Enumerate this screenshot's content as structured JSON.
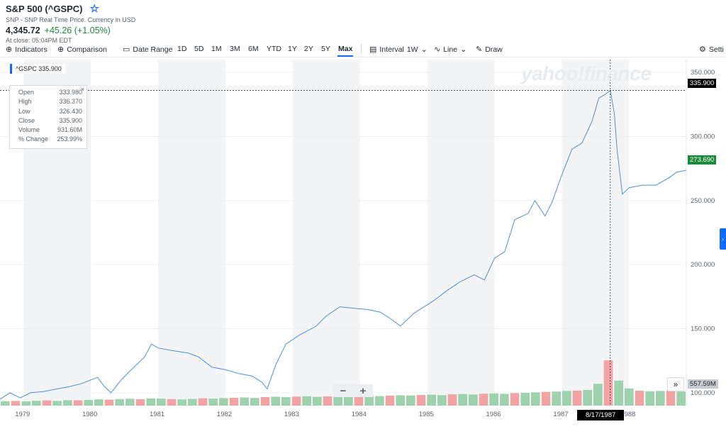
{
  "header": {
    "title": "S&P 500 (^GSPC)",
    "star_icon": "star-icon",
    "subtitle": "SNP - SNP Real Time Price. Currency in USD",
    "price": "4,345.72",
    "change": "+45.26 (+1.05%)",
    "close_note": "At close: 05:04PM EDT"
  },
  "toolbar": {
    "indicators": "Indicators",
    "comparison": "Comparison",
    "date_range": "Date Range",
    "ranges": [
      "1D",
      "5D",
      "1M",
      "3M",
      "6M",
      "YTD",
      "1Y",
      "2Y",
      "5Y",
      "Max"
    ],
    "active_range": "Max",
    "interval_label": "Interval",
    "interval_value": "1W",
    "chart_type": "Line",
    "draw": "Draw",
    "settings": "Setti"
  },
  "ticker_tag": "^GSPC 335.900",
  "watermark": "yahoo!finance",
  "tooltip": {
    "rows": [
      {
        "label": "Open",
        "value": "333.980"
      },
      {
        "label": "High",
        "value": "336.370"
      },
      {
        "label": "Low",
        "value": "326.430"
      },
      {
        "label": "Close",
        "value": "335.900"
      },
      {
        "label": "Volume",
        "value": "931.60M"
      },
      {
        "label": "% Change",
        "value": "253.99%"
      }
    ],
    "close_symbol": "×"
  },
  "price_tags": {
    "crosshair": "335.900",
    "last": "273.690",
    "volume": "557.59M"
  },
  "crosshair_date": "8/17/1987",
  "zoom": {
    "minus": "−",
    "plus": "+"
  },
  "expand_symbol": "»",
  "colors": {
    "line": "#4a90d9",
    "accent": "#0f69ff",
    "up": "#1a8a3b",
    "vol_up": "#9ed2ad",
    "vol_down": "#f2a3a3"
  },
  "chart_data": {
    "type": "line",
    "title": "",
    "ylim": [
      90,
      360
    ],
    "y_ticks": [
      100,
      150,
      200,
      250,
      300,
      350
    ],
    "y_tick_labels": [
      "100.000",
      "150.000",
      "200.000",
      "250.000",
      "300.000",
      "350.000"
    ],
    "x_ticks": [
      "1979",
      "1980",
      "1981",
      "1982",
      "1983",
      "1984",
      "1985",
      "1986",
      "1987",
      "1988"
    ],
    "x_tick_values": [
      1979,
      1980,
      1981,
      1982,
      1983,
      1984,
      1985,
      1986,
      1987,
      1988
    ],
    "xlim": [
      1978.65,
      1988.85
    ],
    "grid": true,
    "series": [
      {
        "name": "^GSPC",
        "x": [
          1978.65,
          1978.8,
          1978.95,
          1979.1,
          1979.3,
          1979.5,
          1979.7,
          1979.85,
          1980.1,
          1980.2,
          1980.3,
          1980.45,
          1980.6,
          1980.8,
          1980.9,
          1981.0,
          1981.2,
          1981.45,
          1981.6,
          1981.8,
          1982.0,
          1982.2,
          1982.4,
          1982.55,
          1982.62,
          1982.75,
          1982.9,
          1983.1,
          1983.35,
          1983.5,
          1983.7,
          1983.9,
          1984.1,
          1984.3,
          1984.45,
          1984.6,
          1984.8,
          1984.95,
          1985.1,
          1985.3,
          1985.5,
          1985.7,
          1985.85,
          1986.0,
          1986.15,
          1986.3,
          1986.5,
          1986.6,
          1986.75,
          1986.85,
          1987.0,
          1987.15,
          1987.3,
          1987.45,
          1987.55,
          1987.62,
          1987.72,
          1987.78,
          1987.82,
          1987.9,
          1988.0,
          1988.2,
          1988.4,
          1988.6,
          1988.7,
          1988.85
        ],
        "y": [
          95,
          100,
          96,
          100,
          101,
          103,
          105,
          107,
          112,
          105,
          100,
          110,
          118,
          128,
          138,
          135,
          133,
          131,
          128,
          120,
          118,
          115,
          113,
          108,
          103,
          122,
          138,
          145,
          152,
          160,
          167,
          166,
          165,
          163,
          158,
          152,
          162,
          167,
          172,
          180,
          187,
          192,
          188,
          205,
          210,
          235,
          240,
          250,
          238,
          248,
          270,
          290,
          295,
          312,
          330,
          332,
          335.9,
          318,
          290,
          255,
          260,
          262,
          262,
          268,
          272,
          273.69
        ]
      }
    ],
    "volume_relative": [
      0.28,
      0.3,
      0.27,
      0.31,
      0.33,
      0.3,
      0.35,
      0.34,
      0.36,
      0.4,
      0.38,
      0.42,
      0.44,
      0.41,
      0.46,
      0.45,
      0.42,
      0.4,
      0.43,
      0.47,
      0.45,
      0.48,
      0.5,
      0.52,
      0.49,
      0.55,
      0.57,
      0.54,
      0.58,
      0.6,
      0.56,
      0.59,
      0.62,
      0.6,
      0.58,
      0.63,
      0.61,
      0.64,
      0.66,
      0.65,
      0.68,
      0.7,
      0.67,
      0.72,
      0.74,
      0.71,
      0.76,
      0.78,
      0.75,
      0.8,
      0.82,
      0.85,
      0.88,
      0.9,
      0.94,
      0.96,
      1.0,
      1.4,
      2.9,
      1.6,
      1.1,
      0.95,
      0.92,
      0.94,
      0.96,
      0.9
    ]
  }
}
